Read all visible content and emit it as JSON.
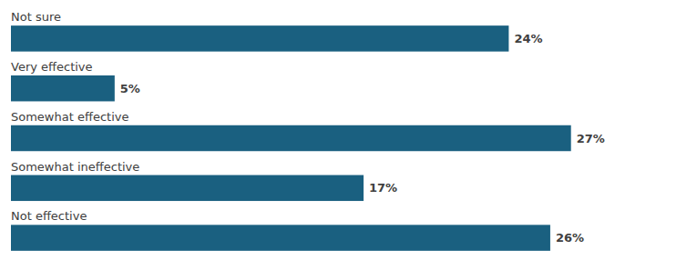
{
  "chart_data": {
    "type": "bar",
    "orientation": "horizontal",
    "categories": [
      "Not sure",
      "Very effective",
      "Somewhat effective",
      "Somewhat ineffective",
      "Not effective"
    ],
    "values": [
      24,
      5,
      27,
      17,
      26
    ],
    "value_labels": [
      "24%",
      "5%",
      "27%",
      "17%",
      "26%"
    ],
    "data_labels": true,
    "color": "#1a6080",
    "xlim": [
      0,
      30
    ],
    "grid": false,
    "tick_labels": false
  }
}
